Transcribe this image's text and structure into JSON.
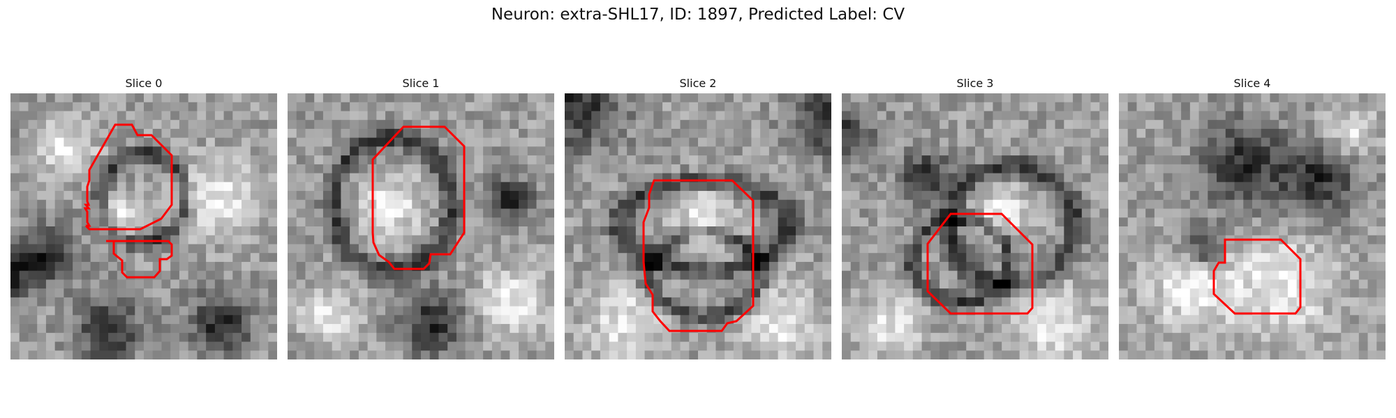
{
  "figure": {
    "title": "Neuron: extra-SHL17, ID: 1897, Predicted Label: CV"
  },
  "colors": {
    "contour": "#ff0000"
  },
  "panels": [
    {
      "title": "Slice 0",
      "image": "grayscale EM crop"
    },
    {
      "title": "Slice 1",
      "image": "grayscale EM crop"
    },
    {
      "title": "Slice 2",
      "image": "grayscale EM crop"
    },
    {
      "title": "Slice 3",
      "image": "grayscale EM crop"
    },
    {
      "title": "Slice 4",
      "image": "grayscale EM crop"
    }
  ]
}
